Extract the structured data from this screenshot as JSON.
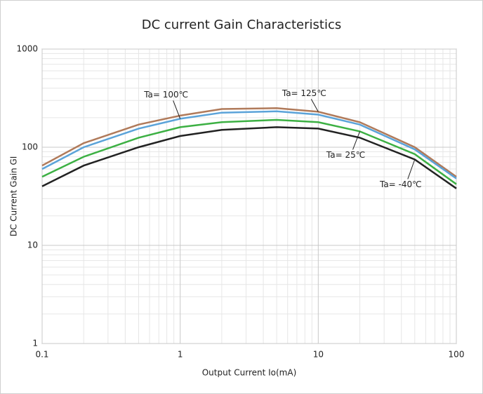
{
  "chart_data": {
    "type": "line",
    "title": "DC current Gain Characteristics",
    "x_label": "Output Current Io(mA)",
    "y_label": "DC Current Gain GI",
    "x": [
      0.1,
      0.2,
      0.5,
      1,
      2,
      5,
      10,
      20,
      50,
      100
    ],
    "series": [
      {
        "name": "Ta= 125℃",
        "color": "#b07a5a",
        "values": [
          65,
          110,
          170,
          210,
          245,
          250,
          230,
          180,
          100,
          50
        ]
      },
      {
        "name": "Ta= 100℃",
        "color": "#5ba3d9",
        "values": [
          60,
          100,
          155,
          195,
          225,
          232,
          215,
          170,
          95,
          48
        ]
      },
      {
        "name": "Ta= 25℃",
        "color": "#3cb043",
        "values": [
          50,
          80,
          125,
          160,
          180,
          190,
          180,
          145,
          85,
          42
        ]
      },
      {
        "name": "Ta= -40℃",
        "color": "#222222",
        "values": [
          40,
          65,
          100,
          130,
          150,
          160,
          155,
          125,
          75,
          38
        ]
      }
    ],
    "xlim": [
      0.1,
      100
    ],
    "ylim": [
      1,
      1000
    ],
    "xticks": [
      0.1,
      1,
      10,
      100
    ],
    "yticks": [
      1,
      10,
      100,
      1000
    ],
    "log_x": true,
    "log_y": true,
    "grid": true
  }
}
